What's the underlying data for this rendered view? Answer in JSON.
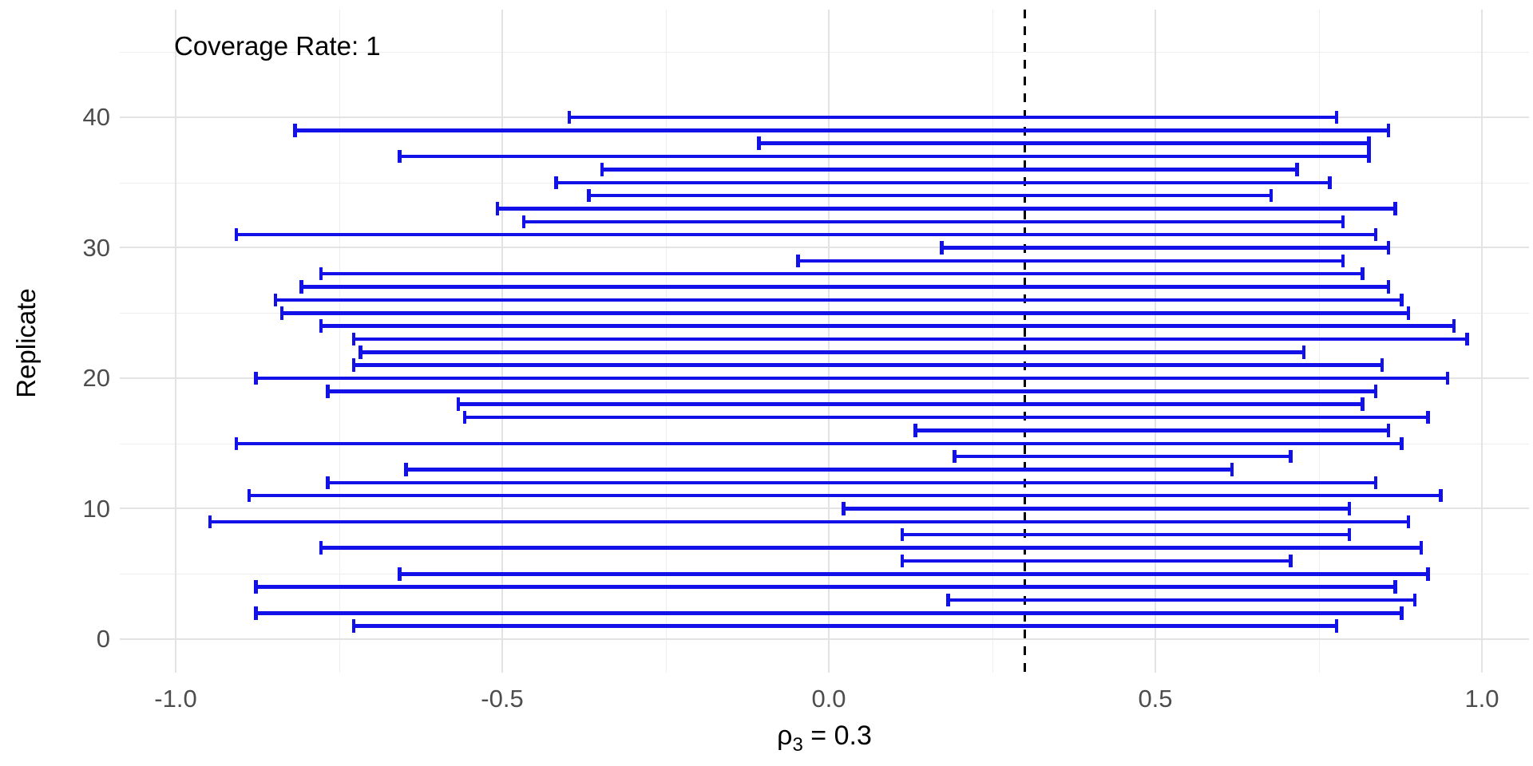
{
  "chart_data": {
    "type": "errorbar",
    "annotation": "Coverage Rate: 1",
    "xlabel": {
      "symbol": "ρ",
      "subscript": "3",
      "rest": " = 0.3"
    },
    "ylabel": "Replicate",
    "x_ticks": {
      "values": [
        -1.0,
        -0.5,
        0.0,
        0.5,
        1.0
      ],
      "labels": [
        "-1.0",
        "-0.5",
        "0.0",
        "0.5",
        "1.0"
      ]
    },
    "x_minor_ticks": [
      -0.75,
      -0.25,
      0.25,
      0.75
    ],
    "y_ticks": {
      "values": [
        0,
        10,
        20,
        30,
        40
      ],
      "labels": [
        "0",
        "10",
        "20",
        "30",
        "40"
      ]
    },
    "y_minor_ticks": [
      5,
      15,
      25,
      35,
      45
    ],
    "xlim": [
      -1.09,
      1.08
    ],
    "ylim": [
      -2.6,
      48.3
    ],
    "grid": true,
    "legend": "none",
    "reference_line": {
      "x": 0.3,
      "style": "dashed",
      "color": "#000000"
    },
    "colors": {
      "interval": "#1212e8",
      "grid_major": "#e3e3e3",
      "grid_minor": "#eeeeee",
      "tick_text": "#4d4d4d",
      "title_text": "#000000",
      "background": "#ffffff"
    },
    "intervals": [
      {
        "replicate": 1,
        "lower": -0.73,
        "upper": 0.78
      },
      {
        "replicate": 2,
        "lower": -0.88,
        "upper": 0.88
      },
      {
        "replicate": 3,
        "lower": 0.18,
        "upper": 0.9
      },
      {
        "replicate": 4,
        "lower": -0.88,
        "upper": 0.87
      },
      {
        "replicate": 5,
        "lower": -0.66,
        "upper": 0.92
      },
      {
        "replicate": 6,
        "lower": 0.11,
        "upper": 0.71
      },
      {
        "replicate": 7,
        "lower": -0.78,
        "upper": 0.91
      },
      {
        "replicate": 8,
        "lower": 0.11,
        "upper": 0.8
      },
      {
        "replicate": 9,
        "lower": -0.95,
        "upper": 0.89
      },
      {
        "replicate": 10,
        "lower": 0.02,
        "upper": 0.8
      },
      {
        "replicate": 11,
        "lower": -0.89,
        "upper": 0.94
      },
      {
        "replicate": 12,
        "lower": -0.77,
        "upper": 0.84
      },
      {
        "replicate": 13,
        "lower": -0.65,
        "upper": 0.62
      },
      {
        "replicate": 14,
        "lower": 0.19,
        "upper": 0.71
      },
      {
        "replicate": 15,
        "lower": -0.91,
        "upper": 0.88
      },
      {
        "replicate": 16,
        "lower": 0.13,
        "upper": 0.86
      },
      {
        "replicate": 17,
        "lower": -0.56,
        "upper": 0.92
      },
      {
        "replicate": 18,
        "lower": -0.57,
        "upper": 0.82
      },
      {
        "replicate": 19,
        "lower": -0.77,
        "upper": 0.84
      },
      {
        "replicate": 20,
        "lower": -0.88,
        "upper": 0.95
      },
      {
        "replicate": 21,
        "lower": -0.73,
        "upper": 0.85
      },
      {
        "replicate": 22,
        "lower": -0.72,
        "upper": 0.73
      },
      {
        "replicate": 23,
        "lower": -0.73,
        "upper": 0.98
      },
      {
        "replicate": 24,
        "lower": -0.78,
        "upper": 0.96
      },
      {
        "replicate": 25,
        "lower": -0.84,
        "upper": 0.89
      },
      {
        "replicate": 26,
        "lower": -0.85,
        "upper": 0.88
      },
      {
        "replicate": 27,
        "lower": -0.81,
        "upper": 0.86
      },
      {
        "replicate": 28,
        "lower": -0.78,
        "upper": 0.82
      },
      {
        "replicate": 29,
        "lower": -0.05,
        "upper": 0.79
      },
      {
        "replicate": 30,
        "lower": 0.17,
        "upper": 0.86
      },
      {
        "replicate": 31,
        "lower": -0.91,
        "upper": 0.84
      },
      {
        "replicate": 32,
        "lower": -0.47,
        "upper": 0.79
      },
      {
        "replicate": 33,
        "lower": -0.51,
        "upper": 0.87
      },
      {
        "replicate": 34,
        "lower": -0.37,
        "upper": 0.68
      },
      {
        "replicate": 35,
        "lower": -0.42,
        "upper": 0.77
      },
      {
        "replicate": 36,
        "lower": -0.35,
        "upper": 0.72
      },
      {
        "replicate": 37,
        "lower": -0.66,
        "upper": 0.83
      },
      {
        "replicate": 38,
        "lower": -0.11,
        "upper": 0.83
      },
      {
        "replicate": 39,
        "lower": -0.82,
        "upper": 0.86
      },
      {
        "replicate": 40,
        "lower": -0.4,
        "upper": 0.78
      }
    ]
  }
}
